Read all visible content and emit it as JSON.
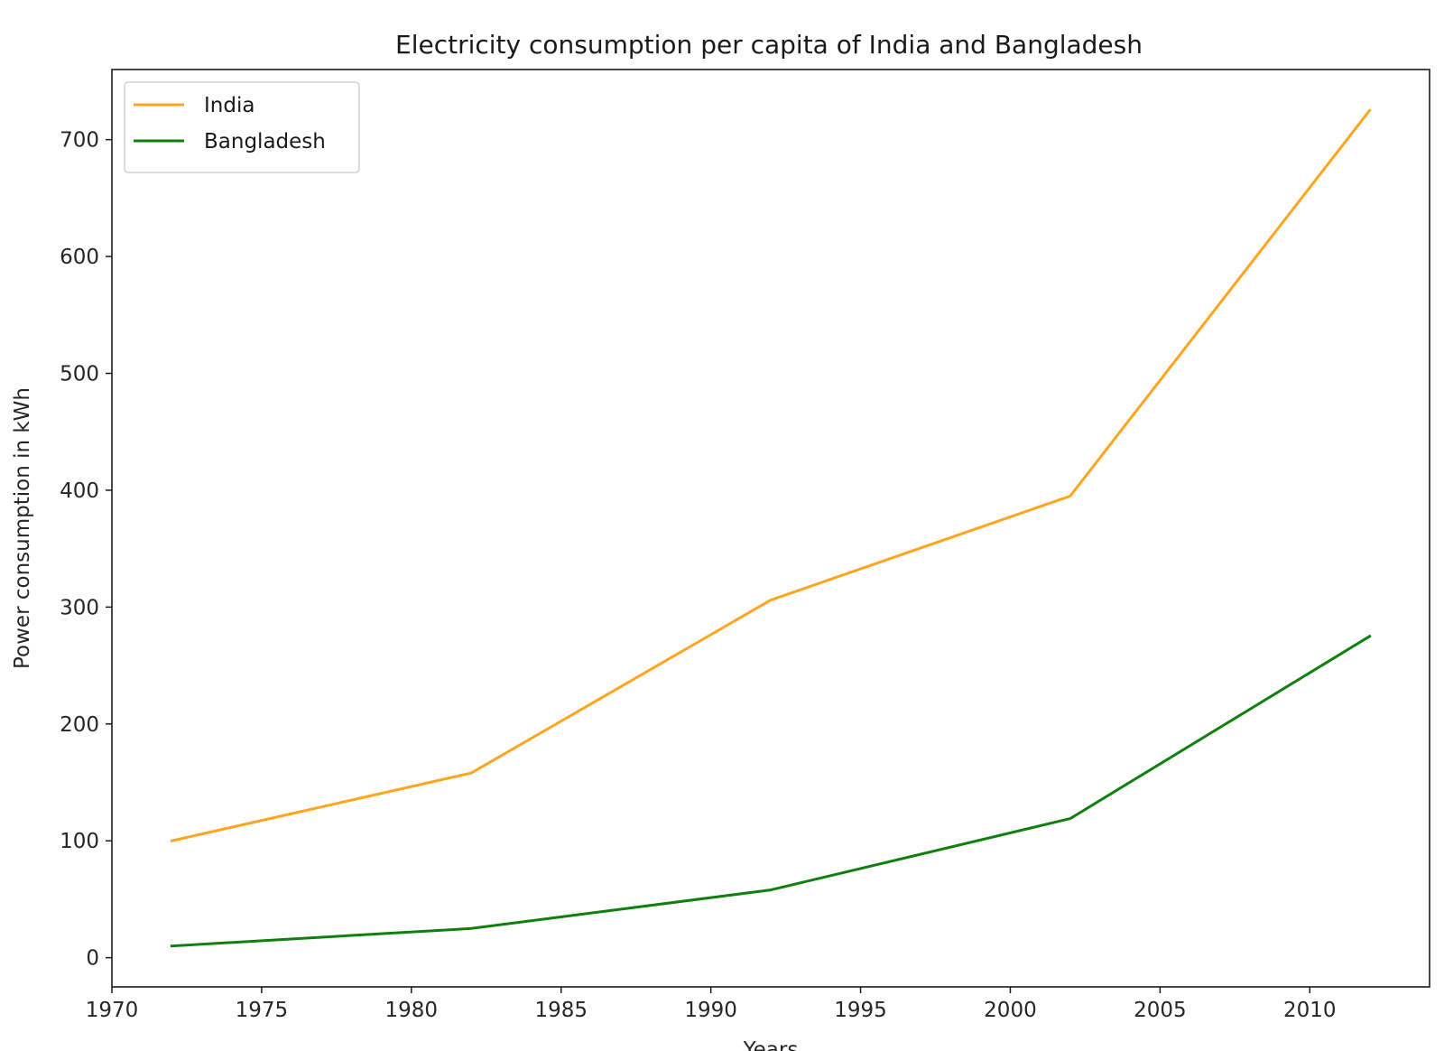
{
  "chart_data": {
    "type": "line",
    "title": "Electricity consumption per capita of India and Bangladesh",
    "xlabel": "Years",
    "ylabel": "Power consumption in kWh",
    "xlim": [
      1970,
      2014
    ],
    "ylim": [
      -25,
      760
    ],
    "xticks": [
      1970,
      1975,
      1980,
      1985,
      1990,
      1995,
      2000,
      2005,
      2010
    ],
    "yticks": [
      0,
      100,
      200,
      300,
      400,
      500,
      600,
      700
    ],
    "x": [
      1972,
      1982,
      1992,
      2002,
      2012
    ],
    "series": [
      {
        "name": "India",
        "color": "#ffa51f",
        "values": [
          100,
          158,
          306,
          395,
          725
        ]
      },
      {
        "name": "Bangladesh",
        "color": "#0f7f10",
        "values": [
          10,
          25,
          58,
          119,
          275
        ]
      }
    ],
    "grid": false,
    "legend_position": "top-left"
  }
}
